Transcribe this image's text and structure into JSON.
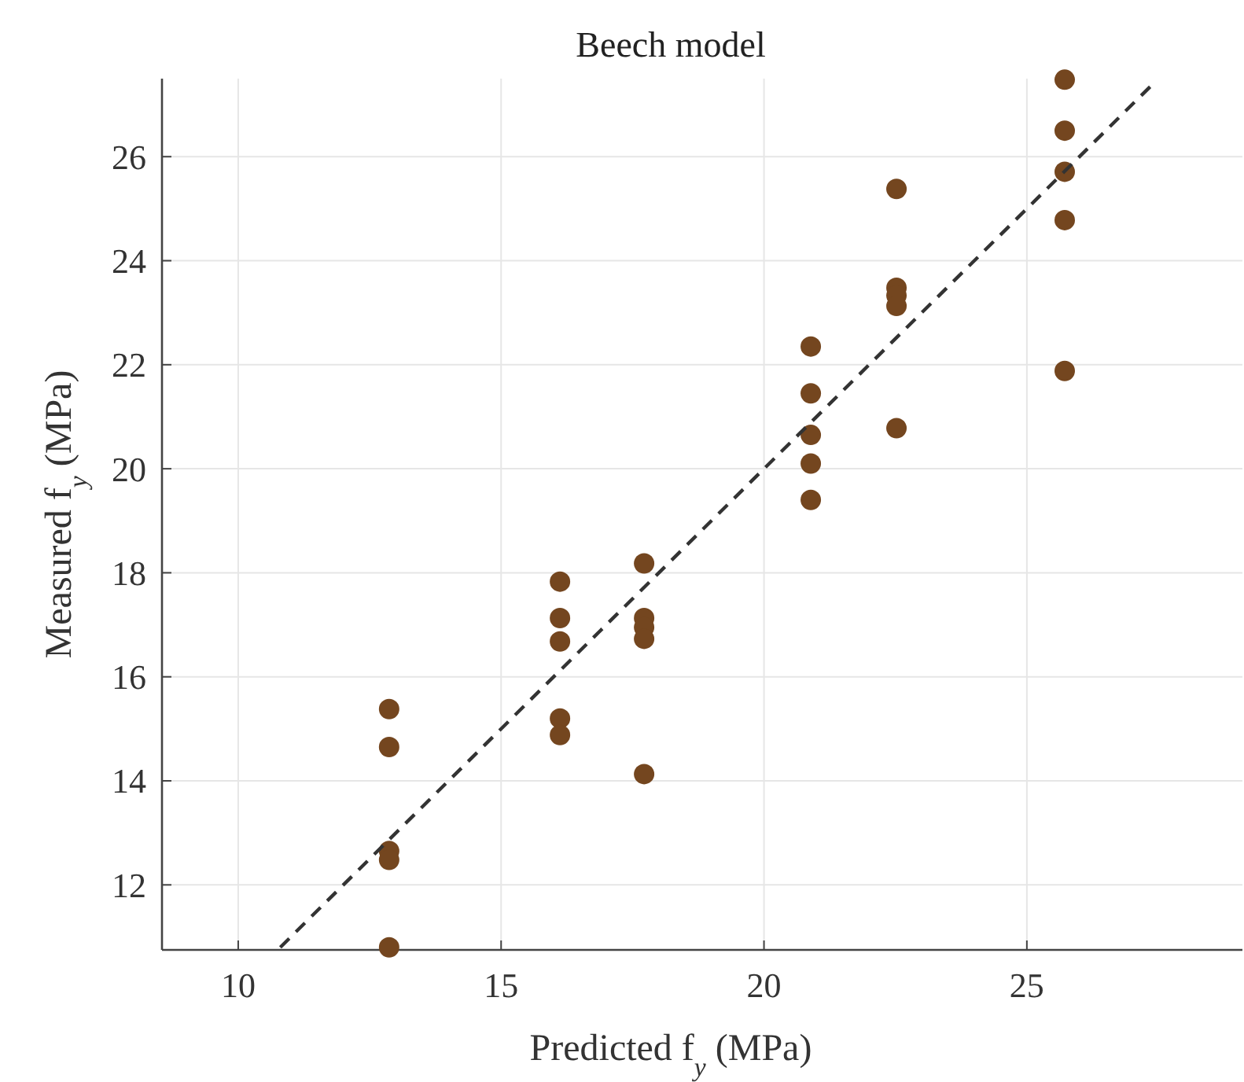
{
  "chart_data": {
    "type": "scatter",
    "title": "Beech model",
    "xlabel": "Predicted f$_{y}$ (MPa)",
    "ylabel": "Measured f$_{y}$ (MPa)",
    "xlim": [
      8.55,
      29.1
    ],
    "xticks": [
      10,
      15,
      20,
      25
    ],
    "ylim": [
      10.75,
      27.5
    ],
    "yticks": [
      12,
      14,
      16,
      18,
      20,
      22,
      24,
      26
    ],
    "grid": true,
    "series": [
      {
        "marker": "circle",
        "color": "#74461f",
        "x": [
          12.87,
          12.87,
          12.87,
          12.87,
          12.87,
          16.12,
          16.12,
          16.12,
          16.12,
          16.12,
          17.72,
          17.72,
          17.72,
          17.72,
          17.72,
          20.89,
          20.89,
          20.89,
          20.89,
          20.89,
          22.52,
          22.52,
          22.52,
          22.52,
          22.52,
          25.72,
          25.72,
          25.72,
          25.72,
          25.72
        ],
        "values": [
          15.38,
          14.65,
          12.65,
          12.48,
          10.8,
          17.83,
          17.13,
          16.68,
          15.2,
          14.88,
          18.18,
          17.13,
          16.95,
          16.73,
          14.13,
          22.35,
          21.45,
          20.65,
          20.1,
          19.4,
          25.38,
          23.48,
          23.33,
          23.13,
          20.78,
          27.48,
          26.5,
          25.71,
          24.78,
          21.88
        ]
      },
      {
        "type": "line",
        "color": "#333333",
        "line_style": "dashed",
        "marker": "none",
        "x": [
          10.8,
          27.4
        ],
        "values": [
          10.8,
          27.4
        ]
      }
    ]
  }
}
